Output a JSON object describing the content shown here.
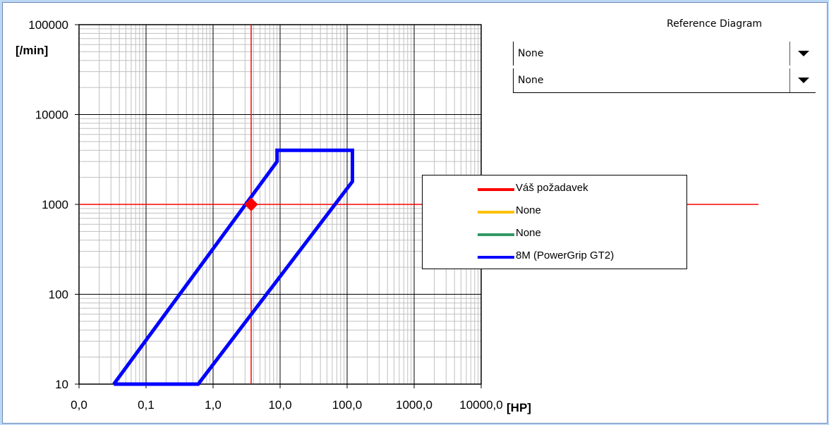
{
  "reference": {
    "title": "Reference Diagram",
    "selects": [
      {
        "value": "None"
      },
      {
        "value": "None"
      }
    ]
  },
  "chart_data": {
    "type": "line",
    "title": "",
    "xlabel": "[HP]",
    "ylabel": "[/min]",
    "xscale": "log",
    "yscale": "log",
    "xlim": [
      0.01,
      10000
    ],
    "ylim": [
      10,
      100000
    ],
    "x_tick_labels": [
      "0,0",
      "0,1",
      "1,0",
      "10,0",
      "100,0",
      "1000,0",
      "10000,0"
    ],
    "y_tick_labels": [
      "10",
      "100",
      "1000",
      "10000",
      "100000"
    ],
    "grid": true,
    "legend_position": "right",
    "series": [
      {
        "name": "Váš požadavek",
        "color": "#ff0000",
        "kind": "point_with_crosshair",
        "points": [
          [
            3.7,
            1000
          ]
        ]
      },
      {
        "name": "None",
        "color": "#ffc000",
        "points": []
      },
      {
        "name": "None",
        "color": "#339966",
        "points": []
      },
      {
        "name": "8M (PowerGrip GT2)",
        "color": "#0000ff",
        "points": [
          [
            0.033,
            10
          ],
          [
            0.6,
            10
          ],
          [
            120,
            1800
          ],
          [
            120,
            4000
          ],
          [
            9,
            4000
          ],
          [
            9,
            3000
          ],
          [
            0.033,
            10
          ]
        ]
      }
    ]
  }
}
